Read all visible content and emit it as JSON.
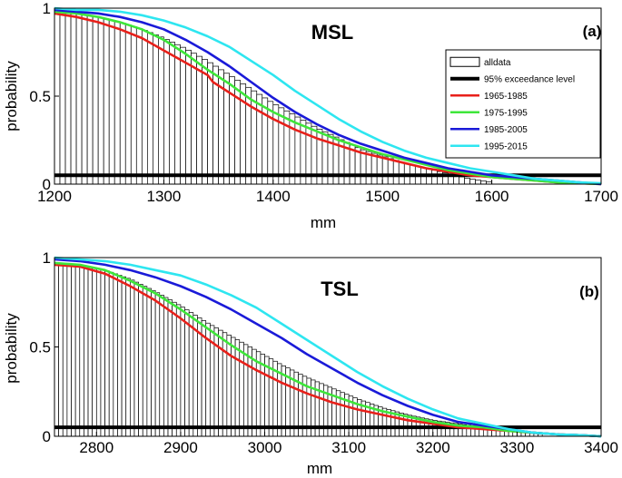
{
  "chart_data": [
    {
      "type": "bar",
      "panel_id": "a",
      "title": "MSL",
      "panel_label": "(a)",
      "xlabel": "mm",
      "ylabel": "probability",
      "xlim": [
        1200,
        1700
      ],
      "ylim": [
        0,
        1
      ],
      "xticks": [
        1200,
        1300,
        1400,
        1500,
        1600,
        1700
      ],
      "yticks": [
        0,
        0.5,
        1
      ],
      "ytick_labels": [
        "0",
        "0.5",
        "1"
      ],
      "bars": {
        "name": "alldata",
        "x_start": 1200,
        "x_end": 1600,
        "bin_width": 5,
        "curve_x": [
          1200,
          1220,
          1240,
          1260,
          1280,
          1300,
          1320,
          1340,
          1360,
          1380,
          1400,
          1420,
          1440,
          1460,
          1480,
          1500,
          1520,
          1540,
          1560,
          1580,
          1600
        ],
        "curve_y": [
          0.98,
          0.97,
          0.95,
          0.92,
          0.88,
          0.83,
          0.77,
          0.7,
          0.62,
          0.54,
          0.46,
          0.39,
          0.32,
          0.26,
          0.2,
          0.16,
          0.12,
          0.09,
          0.06,
          0.03,
          0.01
        ]
      },
      "threshold": {
        "name": "95% exceedance level",
        "value": 0.05
      },
      "series": [
        {
          "name": "1965-1985",
          "color": "#e8201a",
          "x": [
            1200,
            1220,
            1240,
            1260,
            1280,
            1300,
            1320,
            1340,
            1345,
            1360,
            1380,
            1400,
            1420,
            1440,
            1460,
            1480,
            1500,
            1520,
            1540,
            1560,
            1580,
            1600,
            1620,
            1640,
            1660,
            1680,
            1700
          ],
          "values": [
            0.97,
            0.95,
            0.92,
            0.88,
            0.83,
            0.76,
            0.69,
            0.62,
            0.58,
            0.52,
            0.44,
            0.37,
            0.31,
            0.26,
            0.22,
            0.18,
            0.15,
            0.12,
            0.09,
            0.07,
            0.05,
            0.04,
            0.03,
            0.02,
            0.01,
            0.005,
            0.0
          ]
        },
        {
          "name": "1975-1995",
          "color": "#3ee63a",
          "x": [
            1200,
            1220,
            1240,
            1260,
            1280,
            1300,
            1320,
            1340,
            1360,
            1380,
            1400,
            1420,
            1440,
            1460,
            1480,
            1500,
            1520,
            1540,
            1560,
            1580,
            1600,
            1620,
            1640,
            1660,
            1680,
            1700
          ],
          "values": [
            0.98,
            0.97,
            0.95,
            0.92,
            0.88,
            0.82,
            0.74,
            0.65,
            0.57,
            0.48,
            0.41,
            0.35,
            0.3,
            0.25,
            0.21,
            0.17,
            0.14,
            0.11,
            0.08,
            0.06,
            0.04,
            0.03,
            0.02,
            0.01,
            0.005,
            0.0
          ]
        },
        {
          "name": "1985-2005",
          "color": "#1a1ad8",
          "x": [
            1200,
            1220,
            1240,
            1260,
            1280,
            1300,
            1320,
            1340,
            1360,
            1380,
            1400,
            1420,
            1440,
            1460,
            1480,
            1500,
            1520,
            1540,
            1560,
            1580,
            1600,
            1620,
            1640,
            1660,
            1680,
            1700
          ],
          "values": [
            0.99,
            0.98,
            0.97,
            0.95,
            0.92,
            0.88,
            0.82,
            0.75,
            0.67,
            0.58,
            0.49,
            0.41,
            0.34,
            0.28,
            0.23,
            0.19,
            0.15,
            0.12,
            0.09,
            0.07,
            0.05,
            0.04,
            0.03,
            0.02,
            0.01,
            0.0
          ]
        },
        {
          "name": "1995-2015",
          "color": "#2ee6f0",
          "x": [
            1200,
            1220,
            1240,
            1260,
            1280,
            1300,
            1320,
            1340,
            1360,
            1380,
            1400,
            1420,
            1440,
            1460,
            1480,
            1500,
            1520,
            1540,
            1560,
            1580,
            1600,
            1620,
            1640,
            1660,
            1680,
            1700
          ],
          "values": [
            1.0,
            0.99,
            0.99,
            0.98,
            0.96,
            0.93,
            0.89,
            0.84,
            0.78,
            0.7,
            0.62,
            0.53,
            0.45,
            0.37,
            0.3,
            0.24,
            0.19,
            0.15,
            0.12,
            0.09,
            0.07,
            0.05,
            0.03,
            0.02,
            0.01,
            0.005
          ]
        }
      ],
      "legend": {
        "placement": "right",
        "entries": [
          {
            "label": "alldata",
            "kind": "bar"
          },
          {
            "label": "95% exceedance level",
            "kind": "line",
            "color": "#000000"
          },
          {
            "label": "1965-1985",
            "kind": "line",
            "color": "#e8201a"
          },
          {
            "label": "1975-1995",
            "kind": "line",
            "color": "#3ee63a"
          },
          {
            "label": "1985-2005",
            "kind": "line",
            "color": "#1a1ad8"
          },
          {
            "label": "1995-2015",
            "kind": "line",
            "color": "#2ee6f0"
          }
        ]
      }
    },
    {
      "type": "bar",
      "panel_id": "b",
      "title": "TSL",
      "panel_label": "(b)",
      "xlabel": "mm",
      "ylabel": "probability",
      "xlim": [
        2750,
        3400
      ],
      "ylim": [
        0,
        1
      ],
      "xticks": [
        2800,
        2900,
        3000,
        3100,
        3200,
        3300,
        3400
      ],
      "yticks": [
        0,
        0.5,
        1
      ],
      "ytick_labels": [
        "0",
        "0.5",
        "1"
      ],
      "bars": {
        "name": "alldata",
        "x_start": 2750,
        "x_end": 3330,
        "bin_width": 5,
        "curve_x": [
          2750,
          2780,
          2810,
          2840,
          2870,
          2900,
          2930,
          2960,
          2990,
          3020,
          3050,
          3080,
          3110,
          3140,
          3170,
          3200,
          3230,
          3260,
          3290,
          3330
        ],
        "curve_y": [
          0.97,
          0.96,
          0.93,
          0.88,
          0.81,
          0.73,
          0.64,
          0.56,
          0.48,
          0.4,
          0.33,
          0.27,
          0.21,
          0.16,
          0.12,
          0.09,
          0.07,
          0.05,
          0.03,
          0.01
        ]
      },
      "threshold": {
        "name": "95% exceedance level",
        "value": 0.05
      },
      "series": [
        {
          "name": "1965-1985",
          "color": "#e8201a",
          "x": [
            2750,
            2780,
            2810,
            2840,
            2870,
            2900,
            2930,
            2960,
            2990,
            3020,
            3050,
            3080,
            3110,
            3140,
            3170,
            3200,
            3230,
            3260,
            3290,
            3320,
            3350,
            3380,
            3400
          ],
          "values": [
            0.96,
            0.95,
            0.91,
            0.84,
            0.76,
            0.66,
            0.55,
            0.45,
            0.37,
            0.3,
            0.24,
            0.19,
            0.15,
            0.12,
            0.09,
            0.07,
            0.05,
            0.04,
            0.03,
            0.02,
            0.01,
            0.005,
            0.0
          ]
        },
        {
          "name": "1975-1995",
          "color": "#3ee63a",
          "x": [
            2750,
            2780,
            2810,
            2840,
            2870,
            2900,
            2930,
            2960,
            2990,
            3020,
            3050,
            3080,
            3110,
            3140,
            3170,
            3200,
            3230,
            3260,
            3290,
            3320,
            3350,
            3380,
            3400
          ],
          "values": [
            0.97,
            0.96,
            0.93,
            0.87,
            0.8,
            0.71,
            0.61,
            0.51,
            0.42,
            0.35,
            0.28,
            0.23,
            0.18,
            0.14,
            0.11,
            0.08,
            0.06,
            0.05,
            0.03,
            0.02,
            0.01,
            0.005,
            0.0
          ]
        },
        {
          "name": "1985-2005",
          "color": "#1a1ad8",
          "x": [
            2750,
            2780,
            2810,
            2840,
            2870,
            2900,
            2930,
            2960,
            2990,
            3020,
            3050,
            3080,
            3110,
            3140,
            3170,
            3200,
            3230,
            3260,
            3290,
            3320,
            3350,
            3380,
            3400
          ],
          "values": [
            0.99,
            0.98,
            0.96,
            0.93,
            0.89,
            0.84,
            0.78,
            0.71,
            0.63,
            0.55,
            0.46,
            0.38,
            0.3,
            0.23,
            0.17,
            0.12,
            0.08,
            0.06,
            0.04,
            0.02,
            0.01,
            0.005,
            0.0
          ]
        },
        {
          "name": "1995-2015",
          "color": "#2ee6f0",
          "x": [
            2750,
            2780,
            2810,
            2840,
            2870,
            2900,
            2930,
            2960,
            2990,
            3020,
            3050,
            3080,
            3110,
            3140,
            3170,
            3200,
            3230,
            3260,
            3290,
            3320,
            3350,
            3380,
            3400
          ],
          "values": [
            1.0,
            0.99,
            0.98,
            0.96,
            0.93,
            0.9,
            0.85,
            0.79,
            0.72,
            0.63,
            0.54,
            0.45,
            0.36,
            0.28,
            0.21,
            0.15,
            0.1,
            0.07,
            0.04,
            0.02,
            0.01,
            0.005,
            0.0
          ]
        }
      ]
    }
  ]
}
